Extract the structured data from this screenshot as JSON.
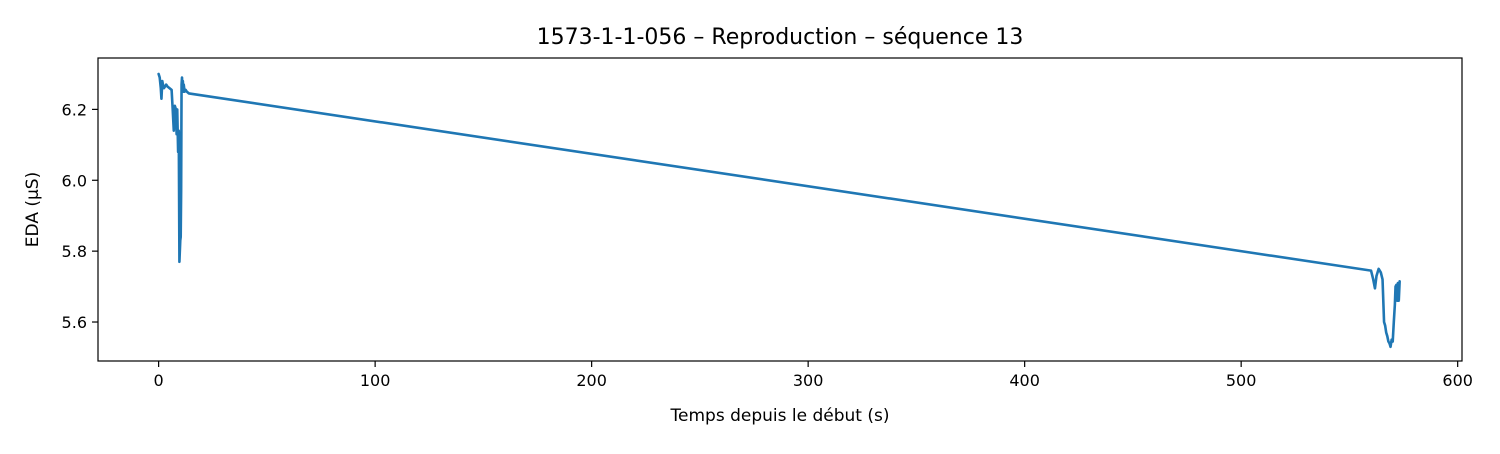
{
  "chart_data": {
    "type": "line",
    "title": "1573-1-1-056 – Reproduction – séquence 13",
    "xlabel": "Temps depuis le début (s)",
    "ylabel": "EDA (µS)",
    "xlim": [
      -28,
      602
    ],
    "ylim": [
      5.49,
      6.345
    ],
    "x_ticks": [
      0,
      100,
      200,
      300,
      400,
      500,
      600
    ],
    "x_tick_labels": [
      "0",
      "100",
      "200",
      "300",
      "400",
      "500",
      "600"
    ],
    "y_ticks": [
      5.6,
      5.8,
      6.0,
      6.2
    ],
    "y_tick_labels": [
      "5.6",
      "5.8",
      "6.0",
      "6.2"
    ],
    "grid": false,
    "series": [
      {
        "color": "#1f77b4",
        "x": [
          0,
          0.5,
          1,
          1.3,
          1.7,
          2,
          2.5,
          3,
          3.5,
          4,
          5,
          6,
          6.5,
          7,
          7.5,
          8,
          8.3,
          8.6,
          9,
          9.3,
          9.6,
          10,
          10.2,
          10.4,
          10.6,
          10.8,
          11,
          11.2,
          11.4,
          11.6,
          12,
          12.5,
          13,
          14,
          560,
          561,
          561.8,
          562.5,
          563.5,
          564.5,
          565.3,
          566,
          566.5,
          567,
          567.5,
          568,
          568.5,
          569,
          569.5,
          570,
          570.5,
          571,
          571.3,
          571.7,
          572,
          572.4,
          572.8,
          573.2
        ],
        "y": [
          6.3,
          6.29,
          6.26,
          6.23,
          6.28,
          6.27,
          6.26,
          6.265,
          6.27,
          6.265,
          6.26,
          6.255,
          6.2,
          6.14,
          6.21,
          6.2,
          6.13,
          6.2,
          6.08,
          6.14,
          5.77,
          5.83,
          5.84,
          5.97,
          6.27,
          6.29,
          6.26,
          6.28,
          6.25,
          6.27,
          6.25,
          6.255,
          6.25,
          6.245,
          5.745,
          5.72,
          5.695,
          5.73,
          5.75,
          5.74,
          5.72,
          5.6,
          5.59,
          5.57,
          5.56,
          5.545,
          5.54,
          5.53,
          5.55,
          5.545,
          5.6,
          5.65,
          5.7,
          5.705,
          5.66,
          5.71,
          5.66,
          5.715
        ]
      }
    ]
  }
}
